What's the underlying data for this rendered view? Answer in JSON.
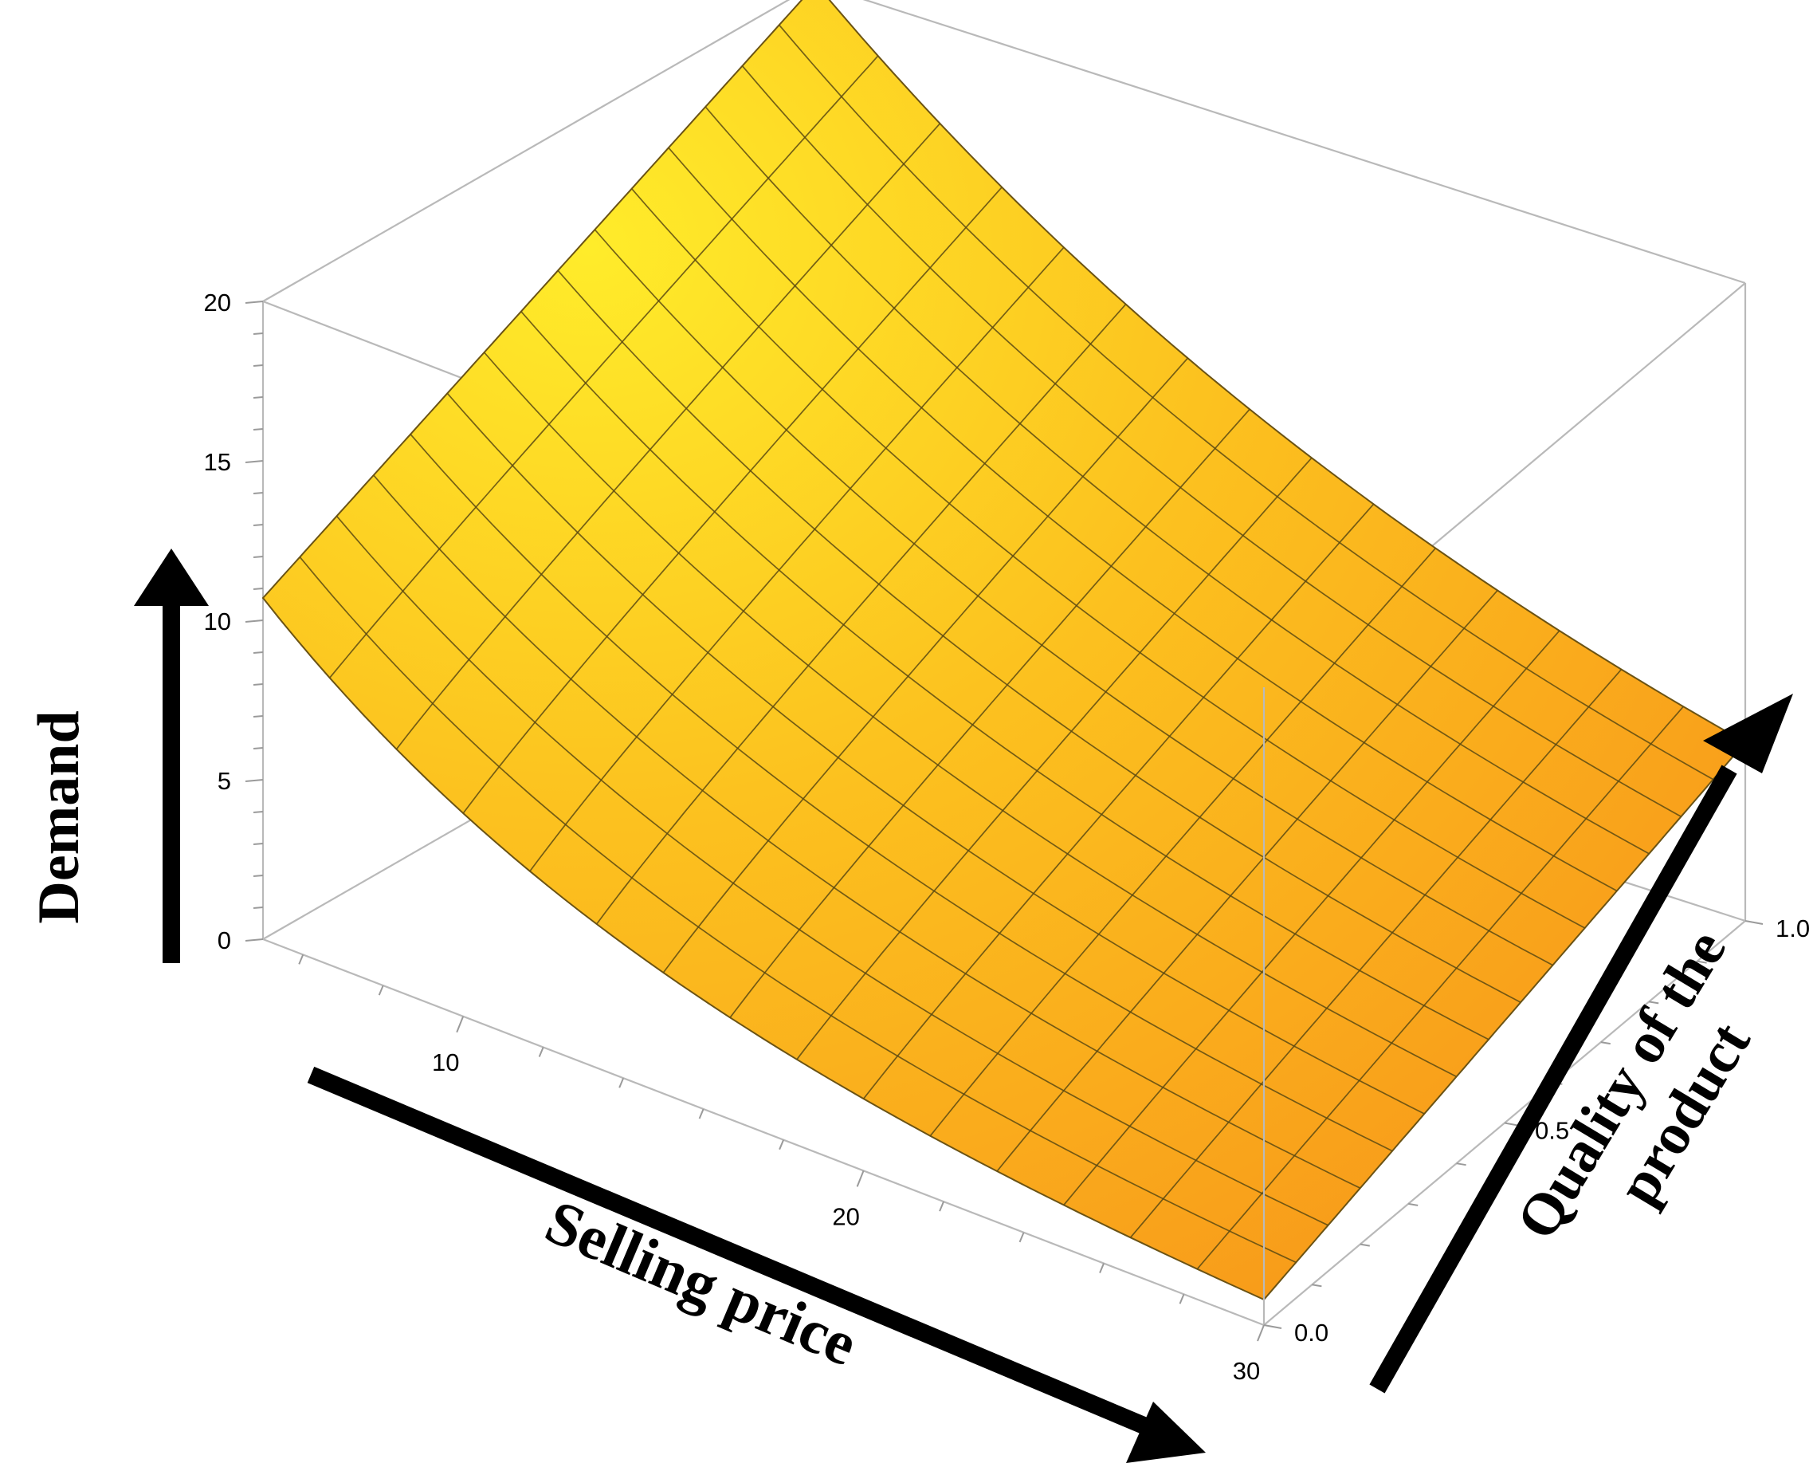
{
  "chart_data": {
    "type": "surface3d",
    "title": "",
    "xlabel": "Selling price",
    "ylabel": "Quality of the product",
    "zlabel": "Demand",
    "x_ticks": [
      "10",
      "20",
      "30"
    ],
    "y_ticks": [
      "0.0",
      "0.5",
      "1.0"
    ],
    "z_ticks": [
      "0",
      "5",
      "10",
      "15",
      "20"
    ],
    "xlim": [
      5,
      30
    ],
    "ylim": [
      0,
      1
    ],
    "zlim": [
      0,
      20
    ],
    "x_samples": [
      5,
      30
    ],
    "y_samples": [
      0,
      1
    ],
    "z_at_corners": [
      {
        "x": 5,
        "y": 0,
        "z": 10.7
      },
      {
        "x": 30,
        "y": 0,
        "z": 0.8
      },
      {
        "x": 5,
        "y": 1,
        "z": 20
      },
      {
        "x": 30,
        "y": 1,
        "z": 5.6
      }
    ],
    "mesh_lines": 15,
    "colors": {
      "surface_high": "#ffec2a",
      "surface_mid": "#fcc21f",
      "surface_low": "#f89a1a",
      "box": "#b9b9b9",
      "arrow": "#000000"
    }
  }
}
